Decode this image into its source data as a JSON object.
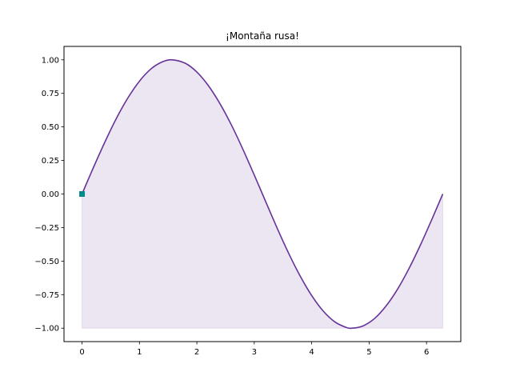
{
  "chart_data": {
    "type": "line",
    "title": "¡Montaña rusa!",
    "xlabel": "",
    "ylabel": "",
    "xlim": [
      -0.314,
      6.597
    ],
    "ylim": [
      -1.1,
      1.1
    ],
    "xticks": [
      0,
      1,
      2,
      3,
      4,
      5,
      6
    ],
    "xtick_labels": [
      "0",
      "1",
      "2",
      "3",
      "4",
      "5",
      "6"
    ],
    "yticks": [
      -1.0,
      -0.75,
      -0.5,
      -0.25,
      0.0,
      0.25,
      0.5,
      0.75,
      1.0
    ],
    "ytick_labels": [
      "−1.00",
      "−0.75",
      "−0.50",
      "−0.25",
      "0.00",
      "0.25",
      "0.50",
      "0.75",
      "1.00"
    ],
    "grid": false,
    "series": [
      {
        "color": "#663399",
        "x": [
          0,
          0.2,
          0.4,
          0.6,
          0.8,
          1.0,
          1.2,
          1.4,
          1.571,
          1.8,
          2.0,
          2.2,
          2.4,
          2.6,
          2.8,
          3.0,
          3.142,
          3.4,
          3.6,
          3.8,
          4.0,
          4.2,
          4.4,
          4.6,
          4.712,
          4.9,
          5.1,
          5.3,
          5.5,
          5.7,
          5.9,
          6.1,
          6.283
        ],
        "y": [
          0.0,
          0.199,
          0.389,
          0.565,
          0.717,
          0.841,
          0.932,
          0.985,
          1.0,
          0.974,
          0.909,
          0.808,
          0.675,
          0.516,
          0.335,
          0.141,
          0.0,
          -0.256,
          -0.443,
          -0.612,
          -0.757,
          -0.872,
          -0.952,
          -0.994,
          -1.0,
          -0.982,
          -0.926,
          -0.832,
          -0.706,
          -0.551,
          -0.374,
          -0.182,
          0.0
        ]
      }
    ],
    "fill": {
      "color": "#663399",
      "opacity": 0.12,
      "baseline": -1.0
    },
    "marker": {
      "x": 0,
      "y": 0,
      "shape": "square",
      "color": "#008b8b"
    }
  }
}
